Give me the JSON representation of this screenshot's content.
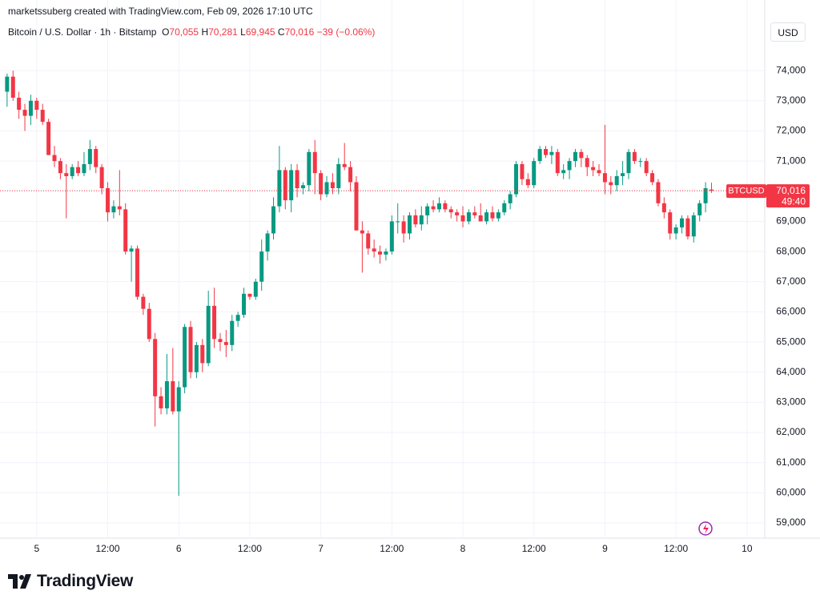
{
  "header": {
    "credit": "marketssuberg created with TradingView.com, Feb 09, 2026 17:10 UTC",
    "symbol": "Bitcoin / U.S. Dollar · 1h · Bitstamp",
    "open_letter": "O",
    "open": "70,055",
    "high_letter": "H",
    "high": "70,281",
    "low_letter": "L",
    "low": "69,945",
    "close_letter": "C",
    "close": "70,016",
    "change": "−39 (−0.06%)",
    "currency": "USD"
  },
  "footer": {
    "brand": "TradingView"
  },
  "chart_data": {
    "type": "candlestick",
    "name": "BTCUSD",
    "up_color": "#089981",
    "down_color": "#f23645",
    "grid": true,
    "last_price": {
      "value": 70016,
      "label": "70,016"
    },
    "countdown": "49:40",
    "x": [
      -5,
      -4,
      -3,
      -2,
      -1,
      0,
      1,
      2,
      3,
      4,
      5,
      6,
      7,
      8,
      9,
      10,
      11,
      12,
      13,
      14,
      15,
      16,
      17,
      18,
      19,
      20,
      21,
      22,
      23,
      24,
      25,
      26,
      27,
      28,
      29,
      30,
      31,
      32,
      33,
      34,
      35,
      36,
      37,
      38,
      39,
      40,
      41,
      42,
      43,
      44,
      45,
      46,
      47,
      48,
      49,
      50,
      51,
      52,
      53,
      54,
      55,
      56,
      57,
      58,
      59,
      60,
      61,
      62,
      63,
      64,
      65,
      66,
      67,
      68,
      69,
      70,
      71,
      72,
      73,
      74,
      75,
      76,
      77,
      78,
      79,
      80,
      81,
      82,
      83,
      84,
      85,
      86,
      87,
      88,
      89,
      90,
      91,
      92,
      93,
      94,
      95,
      96,
      97,
      98,
      99,
      100,
      101,
      102,
      103,
      104,
      105,
      106,
      107,
      108,
      109,
      110,
      111,
      112,
      113,
      114
    ],
    "open": [
      73300,
      73800,
      73100,
      72700,
      72500,
      73000,
      72700,
      72300,
      71200,
      71000,
      70600,
      70500,
      70800,
      70600,
      70900,
      71400,
      70800,
      70100,
      69300,
      69500,
      69400,
      68000,
      68100,
      66500,
      66100,
      65100,
      63200,
      62800,
      63700,
      62700,
      63500,
      65500,
      64000,
      64900,
      64300,
      66200,
      65100,
      65000,
      64900,
      65700,
      65900,
      66600,
      66500,
      67000,
      68000,
      68600,
      69500,
      70700,
      69700,
      70700,
      70100,
      70200,
      71300,
      70600,
      69900,
      70300,
      70100,
      70900,
      70800,
      70300,
      68700,
      68600,
      68100,
      68000,
      67900,
      68000,
      69000,
      69000,
      68600,
      69200,
      68900,
      69200,
      69500,
      69400,
      69600,
      69400,
      69300,
      69200,
      69000,
      69300,
      69200,
      69000,
      69300,
      69100,
      69300,
      69600,
      69900,
      70900,
      70400,
      70200,
      71000,
      71400,
      71200,
      71300,
      70600,
      70700,
      71000,
      71300,
      71100,
      70800,
      70700,
      70600,
      70300,
      70200,
      70500,
      70600,
      71300,
      71000,
      71000,
      70600,
      70300,
      69600,
      69300,
      68600,
      68800,
      69100,
      68500,
      69200,
      69600,
      70055
    ],
    "high": [
      73900,
      74000,
      73300,
      72900,
      73200,
      73100,
      72900,
      72400,
      71500,
      71100,
      70900,
      70900,
      71000,
      71300,
      71700,
      71500,
      70900,
      70300,
      69700,
      70700,
      69600,
      68200,
      68200,
      66600,
      66300,
      65300,
      63500,
      64600,
      64800,
      63700,
      65600,
      65700,
      65000,
      65100,
      66700,
      66800,
      65300,
      65400,
      65900,
      66000,
      66800,
      66600,
      67100,
      68400,
      68700,
      69800,
      71500,
      70800,
      70900,
      70900,
      70300,
      71400,
      71700,
      70700,
      70500,
      70600,
      71100,
      71600,
      71000,
      70500,
      69000,
      68700,
      68400,
      68200,
      68100,
      69200,
      69600,
      69200,
      69300,
      69400,
      69500,
      69600,
      69700,
      69800,
      69700,
      69500,
      69400,
      69500,
      69400,
      69500,
      69600,
      69400,
      69500,
      69400,
      69700,
      70000,
      71000,
      71000,
      70600,
      71100,
      71500,
      71500,
      71500,
      71400,
      70900,
      71100,
      71400,
      71400,
      71200,
      71000,
      70900,
      72200,
      70500,
      70700,
      71000,
      71400,
      71400,
      71100,
      71100,
      70700,
      70400,
      69800,
      69400,
      68900,
      69200,
      69200,
      69300,
      69700,
      70300,
      70281
    ],
    "low": [
      72800,
      73000,
      72400,
      72000,
      72200,
      72400,
      72200,
      71200,
      70800,
      70400,
      69100,
      70400,
      70500,
      70500,
      70700,
      70600,
      69900,
      69000,
      69100,
      69200,
      67900,
      67000,
      66400,
      65900,
      65000,
      62200,
      62600,
      62600,
      62600,
      59900,
      63300,
      63800,
      63800,
      64000,
      64200,
      64800,
      64700,
      64500,
      64700,
      65500,
      65800,
      66400,
      66400,
      66700,
      67700,
      68400,
      69300,
      69400,
      69300,
      69800,
      69900,
      70000,
      69900,
      69700,
      69800,
      69900,
      69900,
      70700,
      70000,
      68700,
      67300,
      67900,
      67800,
      67600,
      67700,
      67900,
      68600,
      68300,
      68400,
      68800,
      68700,
      68900,
      69300,
      69300,
      69300,
      69100,
      69000,
      68800,
      68900,
      69100,
      69000,
      68900,
      69000,
      69000,
      69200,
      69400,
      69800,
      70200,
      70100,
      70100,
      70900,
      71100,
      70900,
      70500,
      70400,
      70400,
      70800,
      70800,
      70500,
      70500,
      70500,
      69900,
      69900,
      70000,
      70200,
      70400,
      70900,
      70800,
      70500,
      70200,
      69500,
      69100,
      68400,
      68400,
      68600,
      68400,
      68300,
      69000,
      69300,
      69945
    ],
    "close": [
      73800,
      73100,
      72700,
      72500,
      73000,
      72700,
      72300,
      71200,
      71000,
      70600,
      70500,
      70800,
      70600,
      70900,
      71400,
      70800,
      70100,
      69300,
      69500,
      69400,
      68000,
      68100,
      66500,
      66100,
      65100,
      63200,
      62800,
      63700,
      62700,
      63500,
      65500,
      64000,
      64900,
      64300,
      66200,
      65100,
      65000,
      64900,
      65700,
      65900,
      66600,
      66500,
      67000,
      68000,
      68600,
      69500,
      70700,
      69700,
      70700,
      70100,
      70200,
      71300,
      70600,
      69900,
      70300,
      70100,
      70900,
      70800,
      70300,
      68700,
      68600,
      68100,
      68000,
      67900,
      68000,
      69000,
      69000,
      68600,
      69200,
      68900,
      69200,
      69500,
      69400,
      69600,
      69400,
      69300,
      69200,
      69000,
      69300,
      69200,
      69000,
      69300,
      69100,
      69300,
      69600,
      69900,
      70900,
      70400,
      70200,
      71000,
      71400,
      71200,
      71300,
      70600,
      70700,
      71000,
      71300,
      71100,
      70800,
      70700,
      70600,
      70300,
      70200,
      70500,
      70600,
      71300,
      71000,
      71000,
      70600,
      70300,
      69600,
      69300,
      68600,
      68800,
      69100,
      68500,
      69200,
      69600,
      70100,
      70016
    ],
    "xlim": [
      -6.2,
      123
    ],
    "xticks": [
      {
        "value": 0,
        "label": "5"
      },
      {
        "value": 12,
        "label": "12:00"
      },
      {
        "value": 24,
        "label": "6"
      },
      {
        "value": 36,
        "label": "12:00"
      },
      {
        "value": 48,
        "label": "7"
      },
      {
        "value": 60,
        "label": "12:00"
      },
      {
        "value": 72,
        "label": "8"
      },
      {
        "value": 84,
        "label": "12:00"
      },
      {
        "value": 96,
        "label": "9"
      },
      {
        "value": 108,
        "label": "12:00"
      },
      {
        "value": 120,
        "label": "10"
      }
    ],
    "ylim": [
      58550,
      74880
    ],
    "yticks": [
      {
        "value": 59000,
        "label": "59,000"
      },
      {
        "value": 60000,
        "label": "60,000"
      },
      {
        "value": 61000,
        "label": "61,000"
      },
      {
        "value": 62000,
        "label": "62,000"
      },
      {
        "value": 63000,
        "label": "63,000"
      },
      {
        "value": 64000,
        "label": "64,000"
      },
      {
        "value": 65000,
        "label": "65,000"
      },
      {
        "value": 66000,
        "label": "66,000"
      },
      {
        "value": 67000,
        "label": "67,000"
      },
      {
        "value": 68000,
        "label": "68,000"
      },
      {
        "value": 69000,
        "label": "69,000"
      },
      {
        "value": 70000,
        "label": "70,000"
      },
      {
        "value": 71000,
        "label": "71,000"
      },
      {
        "value": 72000,
        "label": "72,000"
      },
      {
        "value": 73000,
        "label": "73,000"
      },
      {
        "value": 74000,
        "label": "74,000"
      }
    ]
  }
}
